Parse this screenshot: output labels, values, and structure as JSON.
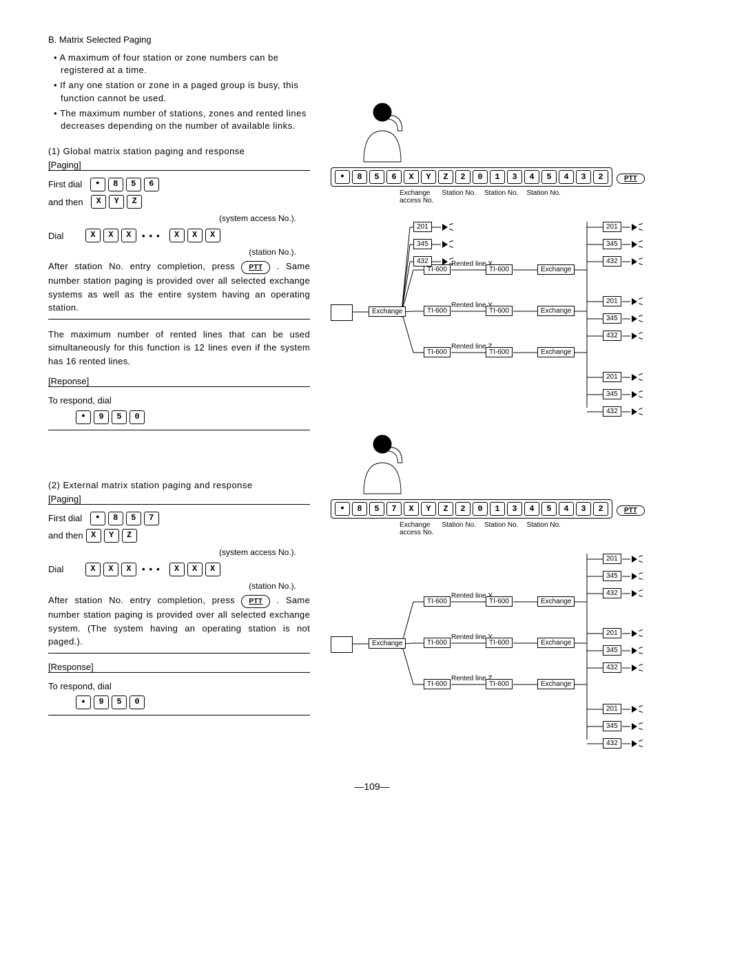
{
  "heading": "B.  Matrix  Selected  Paging",
  "bullets": [
    "A maximum  of four station  or zone numbers  can be registered  at a time.",
    "If any one station  or zone in a paged  group  is busy, this function  cannot  be used.",
    "The maximum  number  of stations,  zones and rented lines decreases  depending  on the number of available links."
  ],
  "sec1_title": "(1) Global matrix  station  paging  and response",
  "paging_label": "[Paging]",
  "response_label": "[Reponse]",
  "response_label2": "[Response]",
  "first_dial": "First dial",
  "and_then": "and then",
  "dial": "Dial",
  "sys_access": "(system access No.).",
  "station_no": "(station No.).",
  "to_respond": "To respond,  dial",
  "after1": "After station No. entry completion, press",
  "after1b": ". Same number station paging is provided over all selected exchange systems as well as the entire system having an operating station.",
  "mid_para": "The maximum  number  of rented  lines that can be used simultaneously  for this function  is 12 lines even if the system  has 16 rented lines.",
  "sec2_title": "(2) External matrix station  paging and response",
  "after2": "After station No. entry completion, press",
  "after2b": ". Same number station paging is provided over all selected exchange system. (The system having an operating station is not paged.).",
  "keys1_long": [
    "•",
    "8",
    "5",
    "6",
    "X",
    "Y",
    "Z",
    "2",
    "0",
    "1",
    "3",
    "4",
    "5",
    "4",
    "3",
    "2"
  ],
  "keys2_long": [
    "•",
    "8",
    "5",
    "7",
    "X",
    "Y",
    "Z",
    "2",
    "0",
    "1",
    "3",
    "4",
    "5",
    "4",
    "3",
    "2"
  ],
  "ptt": "PTT",
  "key_labels": {
    "ex": "Exchange\naccess No.",
    "sn": "Station No."
  },
  "diagram": {
    "stations": [
      "201",
      "345",
      "432"
    ],
    "lines": [
      "Rented line X",
      "Rented line Y",
      "Rented line Z"
    ],
    "ti": "TI-600",
    "exchange": "Exchange"
  },
  "page_num": "—109—"
}
